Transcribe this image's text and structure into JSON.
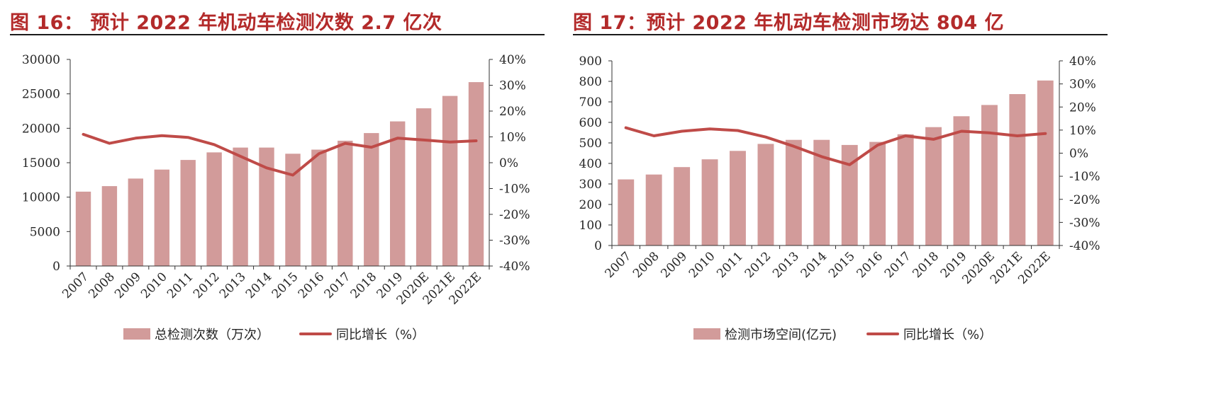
{
  "chart_data": [
    {
      "type": "bar",
      "title": "图  16：  预计 2022 年机动车检测次数 2.7 亿次",
      "categories": [
        "2007",
        "2008",
        "2009",
        "2010",
        "2011",
        "2012",
        "2013",
        "2014",
        "2015",
        "2016",
        "2017",
        "2018",
        "2019",
        "2020E",
        "2021E",
        "2022E"
      ],
      "series": [
        {
          "name": "总检测次数（万次）",
          "kind": "bar",
          "axis": "left",
          "values": [
            10800,
            11600,
            12700,
            14000,
            15400,
            16500,
            17200,
            17200,
            16300,
            16900,
            18200,
            19300,
            21000,
            22900,
            24700,
            26700
          ]
        },
        {
          "name": "同比增长（%）",
          "kind": "line",
          "axis": "right",
          "values": [
            11,
            7.5,
            9.5,
            10.5,
            9.8,
            7,
            2.5,
            -2,
            -4.8,
            3.5,
            7.5,
            6,
            9.5,
            8.8,
            8,
            8.5
          ]
        }
      ],
      "ylim_left": [
        0,
        30000
      ],
      "yticks_left": [
        "0",
        "5000",
        "10000",
        "15000",
        "20000",
        "25000",
        "30000"
      ],
      "ylim_right": [
        -40,
        40
      ],
      "yticks_right": [
        "-40%",
        "-30%",
        "-20%",
        "-10%",
        "0%",
        "10%",
        "20%",
        "30%",
        "40%"
      ],
      "xlabel": "",
      "ylabel": "",
      "grid": false,
      "legend_position": "bottom",
      "colors": {
        "bar": "#d29b9a",
        "line": "#bf4b48"
      }
    },
    {
      "type": "bar",
      "title": "图  17：预计 2022 年机动车检测市场达 804 亿",
      "categories": [
        "2007",
        "2008",
        "2009",
        "2010",
        "2011",
        "2012",
        "2013",
        "2014",
        "2015",
        "2016",
        "2017",
        "2018",
        "2019",
        "2020E",
        "2021E",
        "2022E"
      ],
      "series": [
        {
          "name": "检测市场空间(亿元)",
          "kind": "bar",
          "axis": "left",
          "values": [
            322,
            346,
            382,
            420,
            461,
            495,
            515,
            515,
            490,
            505,
            542,
            577,
            630,
            685,
            738,
            804
          ]
        },
        {
          "name": "同比增长（%）",
          "kind": "line",
          "axis": "right",
          "values": [
            11,
            7.5,
            9.5,
            10.5,
            9.8,
            7,
            3,
            -1.5,
            -5,
            3.5,
            7.5,
            6,
            9.5,
            8.8,
            7.5,
            8.5
          ]
        }
      ],
      "ylim_left": [
        0,
        900
      ],
      "yticks_left": [
        "0",
        "100",
        "200",
        "300",
        "400",
        "500",
        "600",
        "700",
        "800",
        "900"
      ],
      "ylim_right": [
        -40,
        40
      ],
      "yticks_right": [
        "-40%",
        "-30%",
        "-20%",
        "-10%",
        "0%",
        "10%",
        "20%",
        "30%",
        "40%"
      ],
      "xlabel": "",
      "ylabel": "",
      "grid": false,
      "legend_position": "bottom",
      "colors": {
        "bar": "#d29b9a",
        "line": "#bf4b48"
      }
    }
  ]
}
